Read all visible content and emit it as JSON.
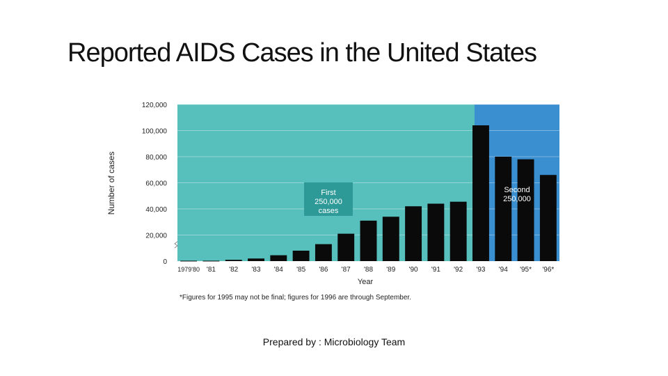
{
  "slide": {
    "title": "Reported AIDS Cases in the United States",
    "footer": "Prepared by : Microbiology Team"
  },
  "chart_data": {
    "type": "bar",
    "title": "",
    "xlabel": "Year",
    "ylabel": "Number of cases",
    "ylim": [
      0,
      120000
    ],
    "yticks": [
      0,
      20000,
      40000,
      60000,
      80000,
      100000,
      120000
    ],
    "ytick_labels": [
      "0",
      "20,000",
      "40,000",
      "60,000",
      "80,000",
      "100,000",
      "120,000"
    ],
    "categories": [
      "1979'80",
      "'81",
      "'82",
      "'83",
      "'84",
      "'85",
      "'86",
      "'87",
      "'88",
      "'89",
      "'90",
      "'91",
      "'92",
      "'93",
      "'94",
      "'95*",
      "'96*"
    ],
    "values": [
      300,
      300,
      1000,
      2000,
      4500,
      8000,
      13000,
      21000,
      31000,
      34000,
      42000,
      44000,
      45500,
      104000,
      80000,
      78000,
      66000
    ],
    "annotations": {
      "first": "First 250,000 cases",
      "second": "Second 250,000"
    },
    "footnote": "*Figures for 1995 may not be final; figures for 1996 are through September.",
    "colors": {
      "first_period": "#57c0bd",
      "second_period": "#3a8fd0",
      "bar": "#0a0a0a",
      "label_box": "#2e9a98"
    }
  }
}
